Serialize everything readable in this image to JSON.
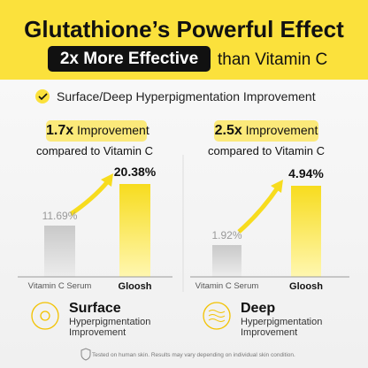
{
  "header": {
    "title": "Glutathione’s Powerful Effect",
    "highlight": "2x More Effective",
    "suffix": "than Vitamin C"
  },
  "subtitle": "Surface/Deep Hyperpigmentation Improvement",
  "panels": [
    {
      "badge_value": "1.7x",
      "badge_text": "Improvement",
      "compare": "compared to Vitamin C",
      "items": [
        {
          "label": "Vitamin C Serum",
          "value": "11.69%"
        },
        {
          "label": "Gloosh",
          "value": "20.38%"
        }
      ],
      "summary_title": "Surface",
      "summary_text": "Hyperpigmentation Improvement"
    },
    {
      "badge_value": "2.5x",
      "badge_text": "Improvement",
      "compare": "compared to Vitamin C",
      "items": [
        {
          "label": "Vitamin C Serum",
          "value": "1.92%"
        },
        {
          "label": "Gloosh",
          "value": "4.94%"
        }
      ],
      "summary_title": "Deep",
      "summary_text": "Hyperpigmentation Improvement"
    }
  ],
  "footer": "Tested on human skin. Results may vary depending on individual skin condition."
}
